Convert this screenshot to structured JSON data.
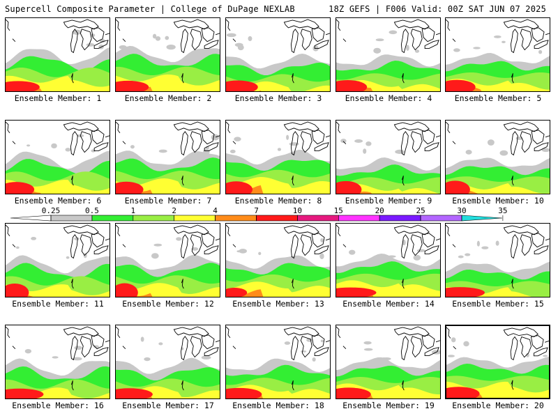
{
  "header": {
    "title": "Supercell Composite Parameter | College of DuPage NEXLAB",
    "run_info": "18Z GEFS | F006 Valid: 00Z SAT JUN 07 2025"
  },
  "members": [
    {
      "label": "Ensemble Member: 1"
    },
    {
      "label": "Ensemble Member: 2"
    },
    {
      "label": "Ensemble Member: 3"
    },
    {
      "label": "Ensemble Member: 4"
    },
    {
      "label": "Ensemble Member: 5"
    },
    {
      "label": "Ensemble Member: 6"
    },
    {
      "label": "Ensemble Member: 7"
    },
    {
      "label": "Ensemble Member: 8"
    },
    {
      "label": "Ensemble Member: 9"
    },
    {
      "label": "Ensemble Member: 10"
    },
    {
      "label": "Ensemble Member: 11"
    },
    {
      "label": "Ensemble Member: 12"
    },
    {
      "label": "Ensemble Member: 13"
    },
    {
      "label": "Ensemble Member: 14"
    },
    {
      "label": "Ensemble Member: 15"
    },
    {
      "label": "Ensemble Member: 16"
    },
    {
      "label": "Ensemble Member: 17"
    },
    {
      "label": "Ensemble Member: 18"
    },
    {
      "label": "Ensemble Member: 19"
    },
    {
      "label": "Ensemble Member: 20"
    }
  ],
  "colorbar": {
    "ticks": [
      "0.25",
      "0.5",
      "1",
      "2",
      "4",
      "7",
      "10",
      "15",
      "20",
      "25",
      "30",
      "35"
    ],
    "colors": [
      "#ffffff",
      "#c8c8c8",
      "#33ee33",
      "#99ee44",
      "#ffff33",
      "#ff8c1a",
      "#ff1a1a",
      "#e6197f",
      "#ff33ff",
      "#7a1aff",
      "#b366ff",
      "#22dddd"
    ]
  },
  "style": {
    "gray": "#c8c8c8",
    "green": "#33ee33",
    "lightgreen": "#99ee44",
    "yellow": "#ffff33",
    "orange": "#ff8c1a",
    "red": "#ff1a1a",
    "coast": "#000000"
  }
}
